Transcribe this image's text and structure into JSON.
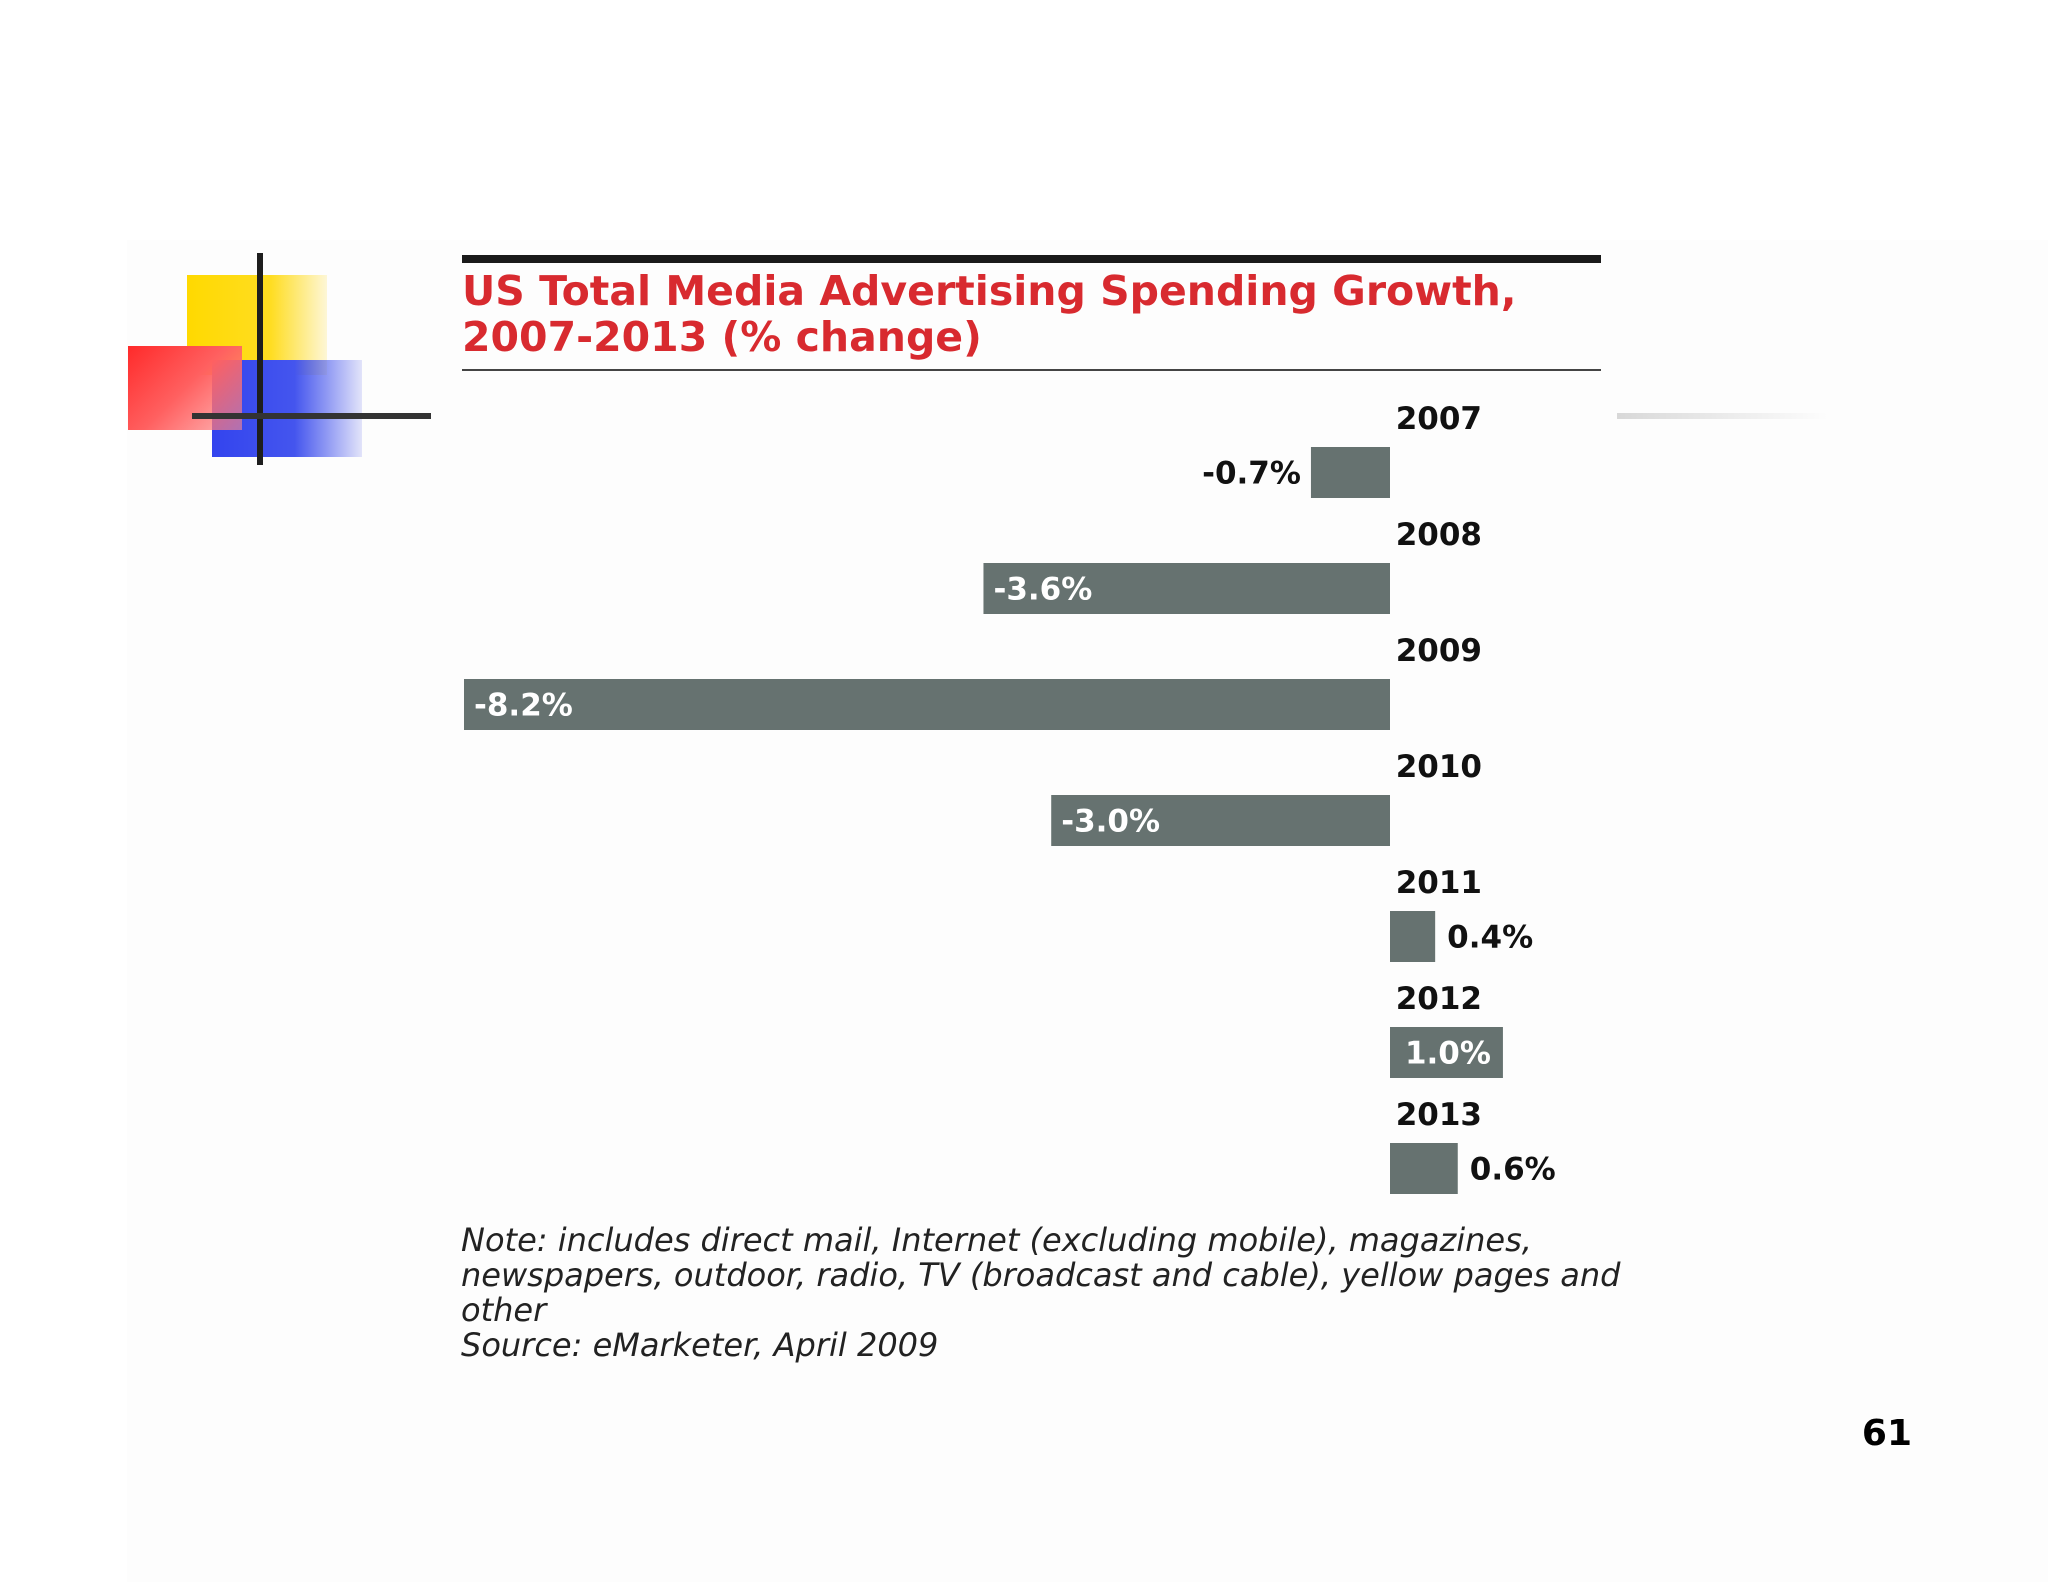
{
  "chart_data": {
    "type": "bar",
    "orientation": "horizontal",
    "title": "US Total Media Advertising Spending Growth, 2007-2013 (% change)",
    "title_lines": [
      "US Total Media Advertising Spending Growth,",
      "2007-2013 (% change)"
    ],
    "categories": [
      "2007",
      "2008",
      "2009",
      "2010",
      "2011",
      "2012",
      "2013"
    ],
    "values": [
      -0.7,
      -3.6,
      -8.2,
      -3.0,
      0.4,
      1.0,
      0.6
    ],
    "value_labels": [
      "-0.7%",
      "-3.6%",
      "-8.2%",
      "-3.0%",
      "0.4%",
      "1.0%",
      "0.6%"
    ],
    "xlim": [
      -8.2,
      1.0
    ],
    "unit": "% change",
    "grid": false,
    "legend": "none",
    "bar_color": "#667270",
    "title_color": "#d82a2f"
  },
  "note": {
    "lines": [
      "Note: includes direct mail, Internet (excluding mobile), magazines,",
      "newspapers, outdoor, radio, TV (broadcast and cable), yellow pages and",
      "other",
      "Source: eMarketer, April 2009"
    ]
  },
  "slide": {
    "page_number": "61"
  }
}
